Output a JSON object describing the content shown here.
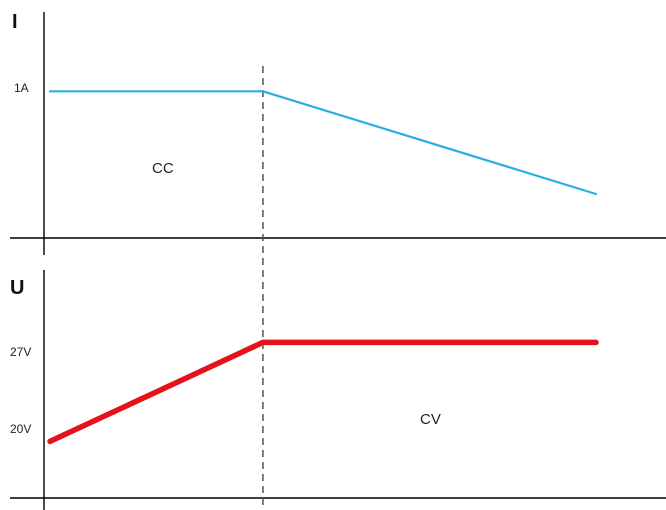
{
  "chart_data": [
    {
      "type": "line",
      "ylabel": "I",
      "tick_labels": [
        "1A"
      ],
      "tick_values": [
        1
      ],
      "ylim": [
        0,
        1.35
      ],
      "region_label": "CC",
      "series": [
        {
          "color": "#2aaee0",
          "x": [
            0,
            0.39,
            1.0
          ],
          "y": [
            1,
            1,
            0.3
          ]
        }
      ]
    },
    {
      "type": "line",
      "ylabel": "U",
      "tick_labels": [
        "27V",
        "20V"
      ],
      "tick_values": [
        27,
        20
      ],
      "ylim": [
        16,
        30
      ],
      "region_label": "CV",
      "series": [
        {
          "color": "#e3121b",
          "x": [
            0,
            0.39,
            1.0
          ],
          "y": [
            20,
            27,
            27
          ]
        }
      ]
    }
  ],
  "boundary_x": 0.39,
  "colors": {
    "current": "#2aaee0",
    "voltage": "#e3121b",
    "axis": "#000000",
    "boundary": "#555555"
  }
}
